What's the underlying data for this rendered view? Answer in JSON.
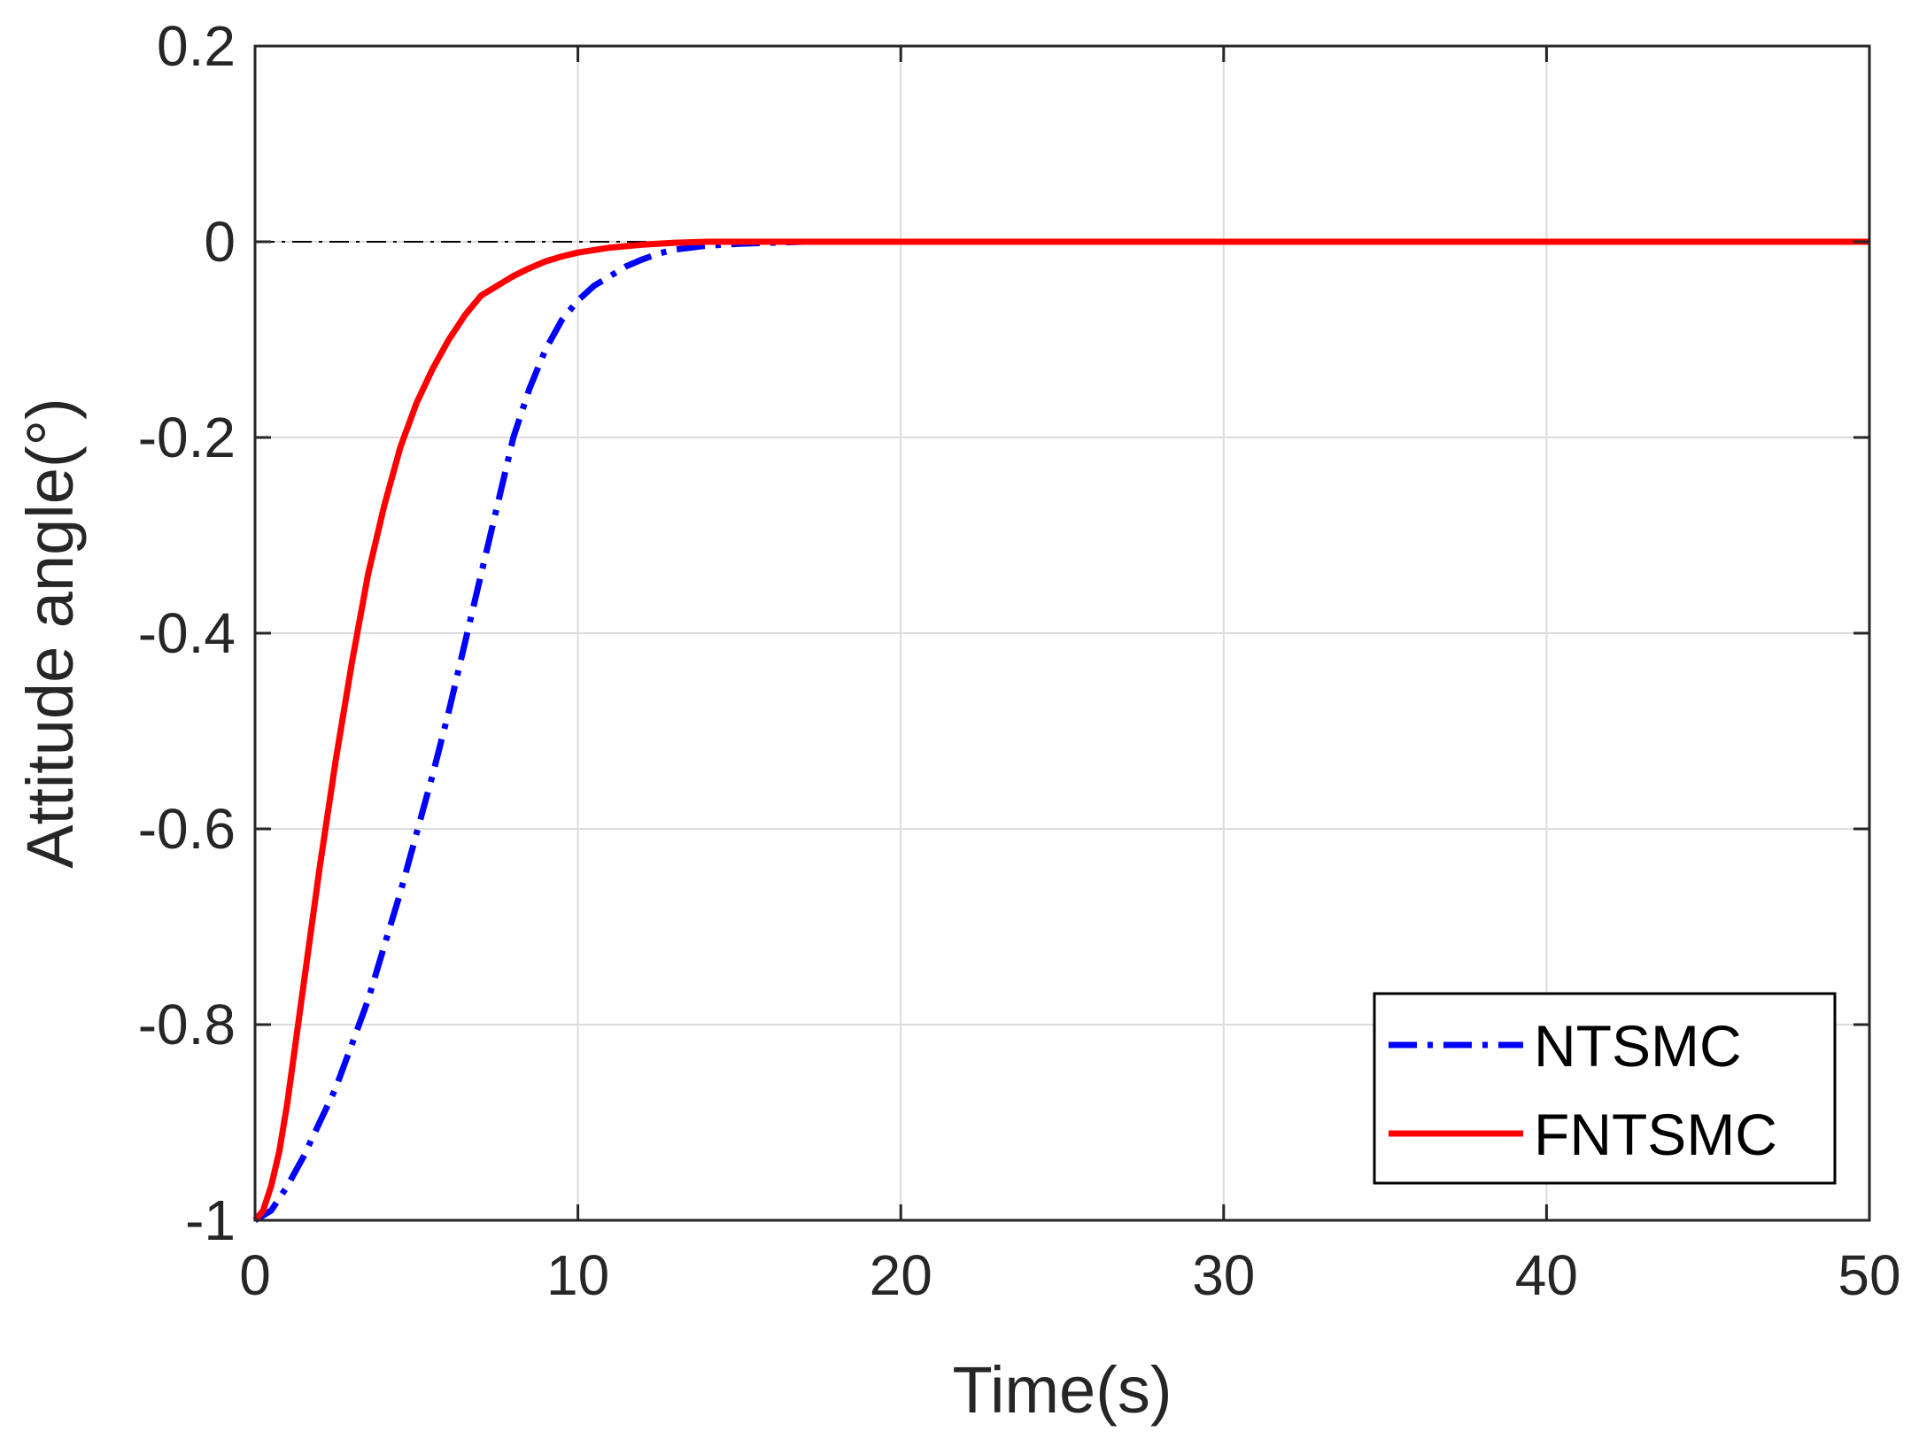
{
  "chart_data": {
    "type": "line",
    "title": "",
    "xlabel": "Time(s)",
    "ylabel": "Attitude angle(°)",
    "xlim": [
      0,
      50
    ],
    "ylim": [
      -1,
      0.2
    ],
    "xticks": [
      0,
      10,
      20,
      30,
      40,
      50
    ],
    "yticks": [
      -1,
      -0.8,
      -0.6,
      -0.4,
      -0.2,
      0,
      0.2
    ],
    "xtick_labels": [
      "0",
      "10",
      "20",
      "30",
      "40",
      "50"
    ],
    "ytick_labels": [
      "-1",
      "-0.8",
      "-0.6",
      "-0.4",
      "-0.2",
      "0",
      "0.2"
    ],
    "grid": true,
    "legend_position": "bottom-right",
    "reference_line": {
      "y": 0,
      "color": "#000000",
      "style": "dash-dot"
    },
    "series": [
      {
        "name": "NTSMC",
        "color": "#0000ff",
        "style": "dash-dot",
        "x": [
          0,
          0.5,
          1,
          1.5,
          2,
          2.5,
          3,
          3.5,
          4,
          4.5,
          5,
          5.5,
          6,
          6.5,
          7,
          7.5,
          8,
          8.5,
          9,
          9.5,
          10,
          10.5,
          11,
          11.5,
          12,
          12.5,
          13,
          14,
          15,
          16,
          17,
          18,
          20,
          25,
          30,
          35,
          40,
          45,
          50
        ],
        "y": [
          -1.0,
          -0.99,
          -0.965,
          -0.935,
          -0.9,
          -0.865,
          -0.82,
          -0.775,
          -0.72,
          -0.665,
          -0.605,
          -0.545,
          -0.48,
          -0.41,
          -0.34,
          -0.27,
          -0.2,
          -0.15,
          -0.11,
          -0.08,
          -0.06,
          -0.045,
          -0.035,
          -0.025,
          -0.018,
          -0.012,
          -0.008,
          -0.004,
          -0.002,
          -0.001,
          0.0,
          0.0,
          0.0,
          0.0,
          0.0,
          0.0,
          0.0,
          0.0,
          0.0
        ]
      },
      {
        "name": "FNTSMC",
        "color": "#ff0000",
        "style": "solid",
        "x": [
          0,
          0.25,
          0.5,
          0.75,
          1,
          1.5,
          2,
          2.5,
          3,
          3.5,
          4,
          4.5,
          5,
          5.5,
          6,
          6.5,
          7,
          7.5,
          8,
          8.5,
          9,
          9.5,
          10,
          11,
          12,
          13,
          14,
          15,
          20,
          25,
          30,
          35,
          40,
          45,
          50
        ],
        "y": [
          -1.0,
          -0.99,
          -0.965,
          -0.93,
          -0.88,
          -0.76,
          -0.64,
          -0.53,
          -0.43,
          -0.34,
          -0.27,
          -0.21,
          -0.165,
          -0.13,
          -0.1,
          -0.075,
          -0.055,
          -0.045,
          -0.035,
          -0.027,
          -0.02,
          -0.015,
          -0.011,
          -0.006,
          -0.003,
          -0.001,
          0.0,
          0.0,
          0.0,
          0.0,
          0.0,
          0.0,
          0.0,
          0.0,
          0.0
        ]
      }
    ]
  }
}
